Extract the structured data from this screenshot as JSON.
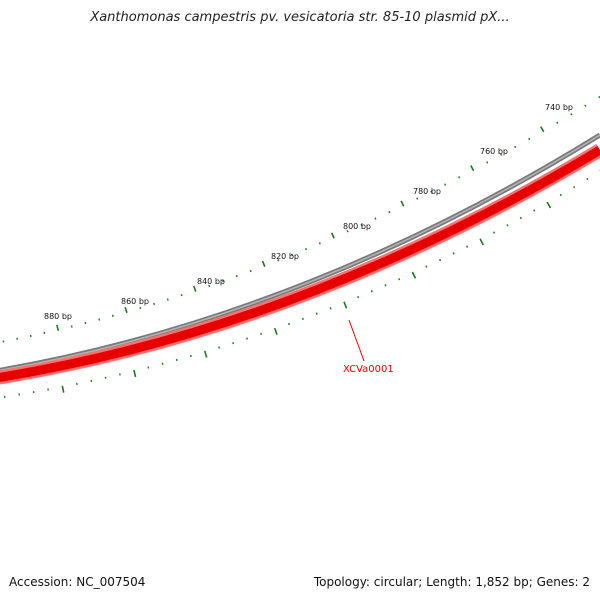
{
  "title": "Xanthomonas campestris pv. vesicatoria str. 85-10 plasmid pX...",
  "footer": {
    "accession": "Accession: NC_007504",
    "summary": "Topology: circular; Length: 1,852 bp; Genes: 2"
  },
  "map": {
    "tick_labels": [
      "740 bp",
      "760 bp",
      "780 bp",
      "800 bp",
      "820 bp",
      "840 bp",
      "860 bp",
      "880 bp"
    ],
    "gene": {
      "label": "XCVa0001",
      "color": "#e00000"
    },
    "colors": {
      "ticks": "#1a7a1a",
      "backbone": "#777777",
      "gene_fill": "#e60000",
      "gene_edge": "#ff6060"
    }
  }
}
